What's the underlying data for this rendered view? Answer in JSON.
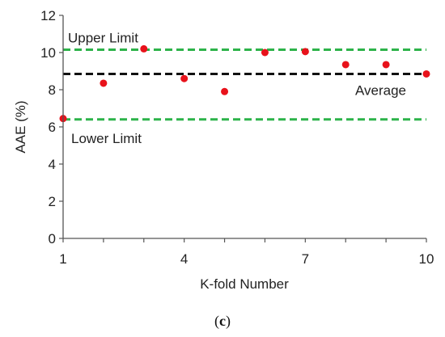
{
  "chart_data": {
    "type": "scatter",
    "xlabel": "K-fold Number",
    "ylabel": "AAE  (%)",
    "xlim": [
      1,
      10
    ],
    "ylim": [
      0,
      12
    ],
    "x_ticks": [
      "1",
      "4",
      "7",
      "10"
    ],
    "x_tick_values": [
      1,
      4,
      7,
      10
    ],
    "y_ticks": [
      "0",
      "2",
      "4",
      "6",
      "8",
      "10",
      "12"
    ],
    "y_tick_values": [
      0,
      2,
      4,
      6,
      8,
      10,
      12
    ],
    "grid": false,
    "series": [
      {
        "marker_color": "#e8121b",
        "x": [
          1,
          2,
          3,
          4,
          5,
          6,
          7,
          8,
          9,
          10
        ],
        "y": [
          6.45,
          8.35,
          10.2,
          8.6,
          7.9,
          10.0,
          10.05,
          9.35,
          9.35,
          8.85
        ]
      }
    ],
    "reference_lines": [
      {
        "label": "Upper Limit",
        "y": 10.15,
        "color": "#2db34a",
        "style": "dashed"
      },
      {
        "label": "Average",
        "y": 8.85,
        "color": "#111111",
        "style": "dashed"
      },
      {
        "label": "Lower Limit",
        "y": 6.4,
        "color": "#2db34a",
        "style": "dashed"
      }
    ]
  },
  "caption": {
    "open": "(",
    "letter": "c",
    "close": ")"
  }
}
